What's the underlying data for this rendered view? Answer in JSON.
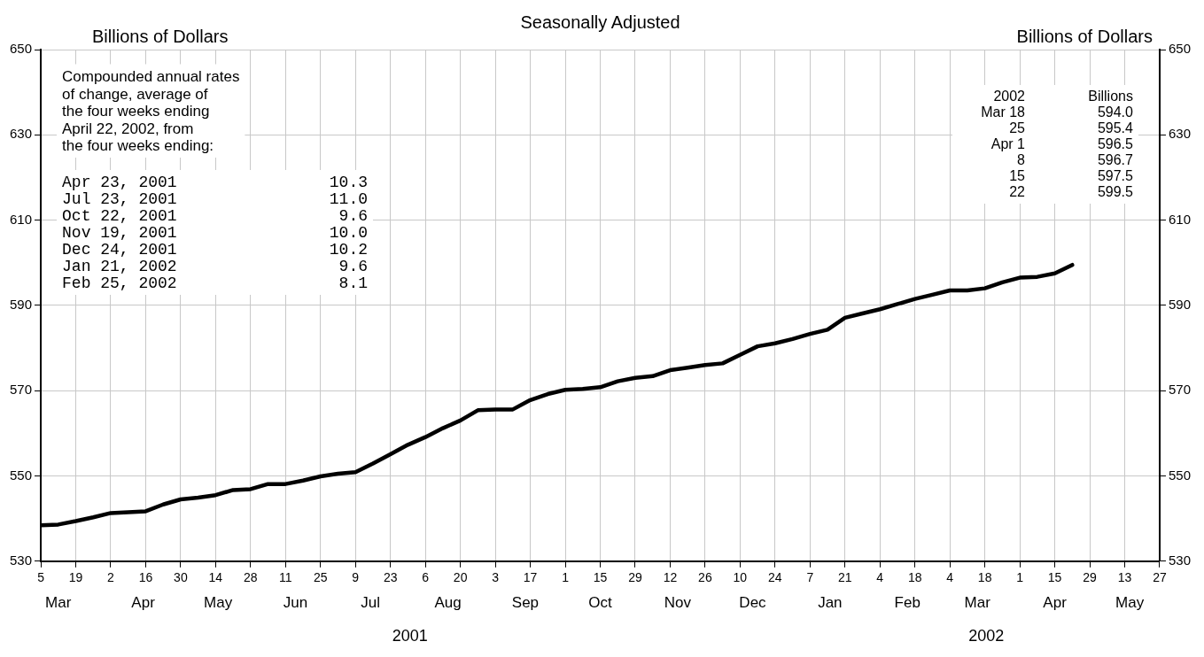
{
  "chart_data": {
    "type": "line",
    "title": "Seasonally Adjusted",
    "ylabel": "Billions of Dollars",
    "y2label": "Billions of Dollars",
    "x": [
      "2001-03-05",
      "2001-03-12",
      "2001-03-19",
      "2001-03-26",
      "2001-04-02",
      "2001-04-09",
      "2001-04-16",
      "2001-04-23",
      "2001-04-30",
      "2001-05-07",
      "2001-05-14",
      "2001-05-21",
      "2001-05-28",
      "2001-06-04",
      "2001-06-11",
      "2001-06-18",
      "2001-06-25",
      "2001-07-02",
      "2001-07-09",
      "2001-07-16",
      "2001-07-23",
      "2001-07-30",
      "2001-08-06",
      "2001-08-13",
      "2001-08-20",
      "2001-08-27",
      "2001-09-03",
      "2001-09-10",
      "2001-09-17",
      "2001-09-24",
      "2001-10-01",
      "2001-10-08",
      "2001-10-15",
      "2001-10-22",
      "2001-10-29",
      "2001-11-05",
      "2001-11-12",
      "2001-11-19",
      "2001-11-26",
      "2001-12-03",
      "2001-12-10",
      "2001-12-17",
      "2001-12-24",
      "2001-12-31",
      "2002-01-07",
      "2002-01-14",
      "2002-01-21",
      "2002-01-28",
      "2002-02-04",
      "2002-02-11",
      "2002-02-18",
      "2002-02-25",
      "2002-03-04",
      "2002-03-11",
      "2002-03-18",
      "2002-03-25",
      "2002-04-01",
      "2002-04-08",
      "2002-04-15",
      "2002-04-22"
    ],
    "series": [
      {
        "color": "#000000",
        "values": [
          538.4,
          538.6,
          539.4,
          540.3,
          541.3,
          541.5,
          541.7,
          543.3,
          544.5,
          544.9,
          545.5,
          546.7,
          546.9,
          548.1,
          548.1,
          548.9,
          549.9,
          550.5,
          550.9,
          552.9,
          555.1,
          557.3,
          559.1,
          561.2,
          563.0,
          565.4,
          565.6,
          565.6,
          567.8,
          569.2,
          570.2,
          570.4,
          570.8,
          572.2,
          573.0,
          573.4,
          574.8,
          575.4,
          576.0,
          576.4,
          578.4,
          580.4,
          581.1,
          582.1,
          583.3,
          584.3,
          587.1,
          588.1,
          589.1,
          590.3,
          591.5,
          592.5,
          593.5,
          593.5,
          594.0,
          595.4,
          596.5,
          596.7,
          597.5,
          599.5
        ]
      }
    ],
    "xlim": [
      "2001-03-05",
      "2002-05-27"
    ],
    "xticks": [
      {
        "value": "2001-03-05",
        "label": "5"
      },
      {
        "value": "2001-03-19",
        "label": "19"
      },
      {
        "value": "2001-04-02",
        "label": "2"
      },
      {
        "value": "2001-04-16",
        "label": "16"
      },
      {
        "value": "2001-04-30",
        "label": "30"
      },
      {
        "value": "2001-05-14",
        "label": "14"
      },
      {
        "value": "2001-05-28",
        "label": "28"
      },
      {
        "value": "2001-06-11",
        "label": "11"
      },
      {
        "value": "2001-06-25",
        "label": "25"
      },
      {
        "value": "2001-07-09",
        "label": "9"
      },
      {
        "value": "2001-07-23",
        "label": "23"
      },
      {
        "value": "2001-08-06",
        "label": "6"
      },
      {
        "value": "2001-08-20",
        "label": "20"
      },
      {
        "value": "2001-09-03",
        "label": "3"
      },
      {
        "value": "2001-09-17",
        "label": "17"
      },
      {
        "value": "2001-10-01",
        "label": "1"
      },
      {
        "value": "2001-10-15",
        "label": "15"
      },
      {
        "value": "2001-10-29",
        "label": "29"
      },
      {
        "value": "2001-11-12",
        "label": "12"
      },
      {
        "value": "2001-11-26",
        "label": "26"
      },
      {
        "value": "2001-12-10",
        "label": "10"
      },
      {
        "value": "2001-12-24",
        "label": "24"
      },
      {
        "value": "2002-01-07",
        "label": "7"
      },
      {
        "value": "2002-01-21",
        "label": "21"
      },
      {
        "value": "2002-02-04",
        "label": "4"
      },
      {
        "value": "2002-02-18",
        "label": "18"
      },
      {
        "value": "2002-03-04",
        "label": "4"
      },
      {
        "value": "2002-03-18",
        "label": "18"
      },
      {
        "value": "2002-04-01",
        "label": "1"
      },
      {
        "value": "2002-04-15",
        "label": "15"
      },
      {
        "value": "2002-04-29",
        "label": "29"
      },
      {
        "value": "2002-05-13",
        "label": "13"
      },
      {
        "value": "2002-05-27",
        "label": "27"
      }
    ],
    "x2lim": [
      "2001-03-05",
      "2002-05-27"
    ],
    "x2ticks": [
      {
        "value": "2001-03-12",
        "label": "Mar"
      },
      {
        "value": "2001-04-15",
        "label": "Apr"
      },
      {
        "value": "2001-05-15",
        "label": "May"
      },
      {
        "value": "2001-06-15",
        "label": "Jun"
      },
      {
        "value": "2001-07-15",
        "label": "Jul"
      },
      {
        "value": "2001-08-15",
        "label": "Aug"
      },
      {
        "value": "2001-09-15",
        "label": "Sep"
      },
      {
        "value": "2001-10-15",
        "label": "Oct"
      },
      {
        "value": "2001-11-15",
        "label": "Nov"
      },
      {
        "value": "2001-12-15",
        "label": "Dec"
      },
      {
        "value": "2002-01-15",
        "label": "Jan"
      },
      {
        "value": "2002-02-15",
        "label": "Feb"
      },
      {
        "value": "2002-03-15",
        "label": "Mar"
      },
      {
        "value": "2002-04-15",
        "label": "Apr"
      },
      {
        "value": "2002-05-15",
        "label": "May"
      }
    ],
    "ylim": [
      530,
      650
    ],
    "yticks": [
      530,
      550,
      570,
      590,
      610,
      630,
      650
    ],
    "y2lim": [
      530,
      650
    ],
    "y2ticks": [
      530,
      550,
      570,
      590,
      610,
      630,
      650
    ],
    "grid": true,
    "legend": false,
    "marker": "none",
    "line_style": "solid",
    "annotations": [
      "Compounded annual rates\nof change, average of\nthe four weeks ending\nApril 22, 2002, from\nthe four weeks ending:",
      "Apr 23, 2001\t10.3\nJul 23, 2001\t11.0\nOct 22, 2001\t9.6\nNov 19, 2001\t10.0\nDec 24, 2001\t10.2\nJan 21, 2002\t9.6\nFeb 25, 2002\t8.1",
      "2002\tBillions\nMar 18\t594.0\n25\t595.4\nApr 1\t596.5\n8\t596.7\n15\t597.5\n22\t599.5",
      "2001",
      "2002"
    ]
  }
}
